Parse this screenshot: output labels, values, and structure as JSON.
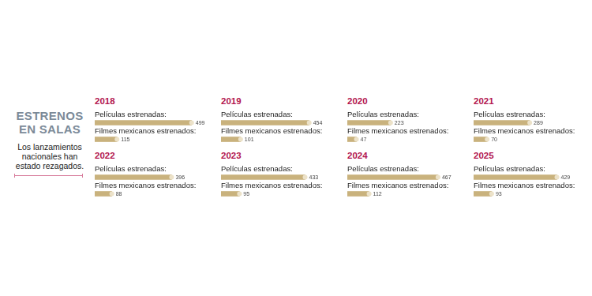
{
  "title": "ESTRENOS EN SALAS",
  "subtitle": "Los lanzamientos nacionales han estado rezagados.",
  "chart_data": [
    {
      "type": "bar",
      "title": "2018",
      "categories": [
        "Películas estrenadas:",
        "Filmes mexicanos estrenados:"
      ],
      "values": [
        499,
        115
      ],
      "color": "#c9b27d",
      "orientation": "horizontal",
      "data_labels": true,
      "tick_labels": false,
      "grid": false,
      "xlim": [
        0,
        500
      ]
    },
    {
      "type": "bar",
      "title": "2019",
      "categories": [
        "Películas estrenadas:",
        "Filmes mexicanos estrenados:"
      ],
      "values": [
        454,
        101
      ],
      "color": "#c9b27d",
      "orientation": "horizontal",
      "data_labels": true,
      "tick_labels": false,
      "grid": false,
      "xlim": [
        0,
        500
      ]
    },
    {
      "type": "bar",
      "title": "2020",
      "categories": [
        "Películas estrenadas:",
        "Filmes mexicanos estrenados:"
      ],
      "values": [
        223,
        47
      ],
      "color": "#c9b27d",
      "orientation": "horizontal",
      "data_labels": true,
      "tick_labels": false,
      "grid": false,
      "xlim": [
        0,
        500
      ]
    },
    {
      "type": "bar",
      "title": "2021",
      "categories": [
        "Películas estrenadas:",
        "Filmes mexicanos estrenados:"
      ],
      "values": [
        289,
        70
      ],
      "color": "#c9b27d",
      "orientation": "horizontal",
      "data_labels": true,
      "tick_labels": false,
      "grid": false,
      "xlim": [
        0,
        500
      ]
    },
    {
      "type": "bar",
      "title": "2022",
      "categories": [
        "Películas estrenadas:",
        "Filmes mexicanos estrenados:"
      ],
      "values": [
        396,
        88
      ],
      "color": "#c9b27d",
      "orientation": "horizontal",
      "data_labels": true,
      "tick_labels": false,
      "grid": false,
      "xlim": [
        0,
        500
      ]
    },
    {
      "type": "bar",
      "title": "2023",
      "categories": [
        "Películas estrenadas:",
        "Filmes mexicanos estrenados:"
      ],
      "values": [
        433,
        95
      ],
      "color": "#c9b27d",
      "orientation": "horizontal",
      "data_labels": true,
      "tick_labels": false,
      "grid": false,
      "xlim": [
        0,
        500
      ]
    },
    {
      "type": "bar",
      "title": "2024",
      "categories": [
        "Películas estrenadas:",
        "Filmes mexicanos estrenados:"
      ],
      "values": [
        467,
        112
      ],
      "color": "#c9b27d",
      "orientation": "horizontal",
      "data_labels": true,
      "tick_labels": false,
      "grid": false,
      "xlim": [
        0,
        500
      ]
    },
    {
      "type": "bar",
      "title": "2025",
      "categories": [
        "Películas estrenadas:",
        "Filmes mexicanos estrenados:"
      ],
      "values": [
        429,
        93
      ],
      "color": "#c9b27d",
      "orientation": "horizontal",
      "data_labels": true,
      "tick_labels": false,
      "grid": false,
      "xlim": [
        0,
        500
      ]
    }
  ]
}
